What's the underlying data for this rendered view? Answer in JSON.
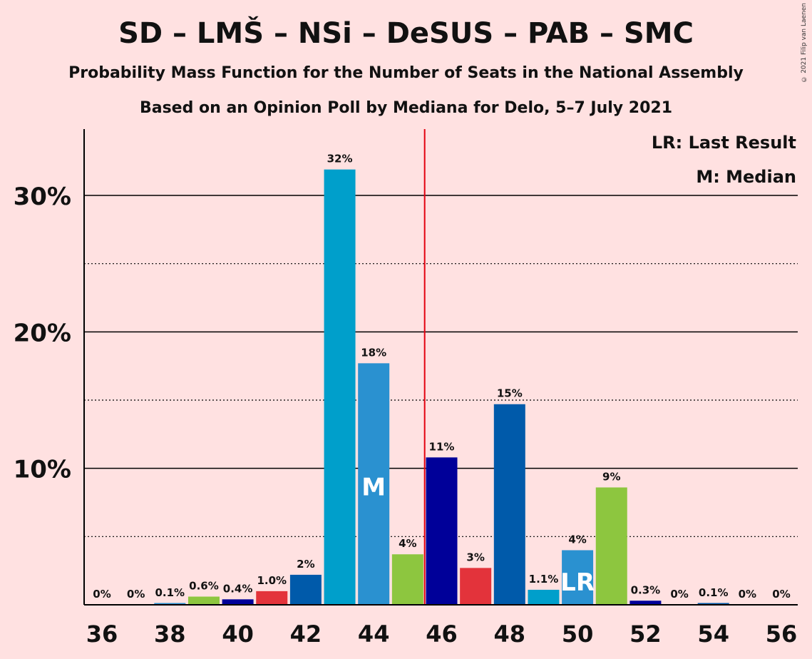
{
  "chart_data": {
    "type": "bar",
    "title": "SD – LMŠ – NSi – DeSUS – PAB – SMC",
    "subtitle": "Probability Mass Function for the Number of Seats in the National Assembly",
    "subtitle2": "Based on an Opinion Poll by Mediana for Delo, 5–7 July 2021",
    "copyright": "© 2021 Filip van Laenen",
    "legend": {
      "lr": "LR: Last Result",
      "m": "M: Median",
      "placement": "top-right"
    },
    "x": [
      36,
      37,
      38,
      39,
      40,
      41,
      42,
      43,
      44,
      45,
      46,
      47,
      48,
      49,
      50,
      51,
      52,
      53,
      54,
      55,
      56
    ],
    "values": [
      0,
      0,
      0.1,
      0.6,
      0.4,
      1.0,
      2.2,
      31.9,
      17.7,
      3.7,
      10.8,
      2.7,
      14.7,
      1.1,
      4.0,
      8.6,
      0.3,
      0,
      0.1,
      0,
      0
    ],
    "labels": [
      "0%",
      "0%",
      "0.1%",
      "0.6%",
      "0.4%",
      "1.0%",
      "2%",
      "32%",
      "18%",
      "4%",
      "11%",
      "3%",
      "15%",
      "1.1%",
      "4%",
      "9%",
      "0.3%",
      "0%",
      "0.1%",
      "0%",
      "0%"
    ],
    "colors": [
      "#005AAA",
      "#009FCB",
      "#2A91D0",
      "#8DC63F",
      "#000099",
      "#E3333B"
    ],
    "x_tick_labels": [
      "36",
      "38",
      "40",
      "42",
      "44",
      "46",
      "48",
      "50",
      "52",
      "54",
      "56"
    ],
    "x_ticks": [
      36,
      38,
      40,
      42,
      44,
      46,
      48,
      50,
      52,
      54,
      56
    ],
    "y_ticks": [
      10,
      20,
      30
    ],
    "y_tick_labels": [
      "10%",
      "20%",
      "30%"
    ],
    "y_minor_ticks": [
      5,
      15,
      25
    ],
    "ylim": [
      0,
      35
    ],
    "majority_line": 45.5,
    "majority_color": "#E3000F",
    "median_seat": 44,
    "median_label": "M",
    "last_result_seat": 50,
    "last_result_label": "LR"
  }
}
